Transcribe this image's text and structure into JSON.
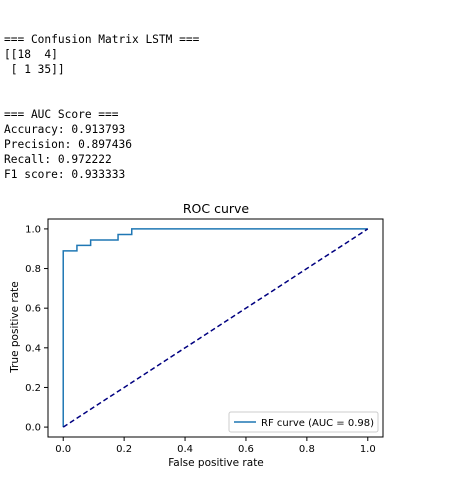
{
  "console": {
    "lines": [
      "=== Confusion Matrix LSTM ===",
      "[[18  4]",
      " [ 1 35]]",
      "",
      "",
      "=== AUC Score ===",
      "Accuracy: 0.913793",
      "Precision: 0.897436",
      "Recall: 0.972222",
      "F1 score: 0.933333"
    ]
  },
  "colors": {
    "roc_line": "#1f77b4",
    "diagonal": "#000080",
    "axes": "#000000"
  },
  "chart_data": {
    "type": "line",
    "title": "ROC curve",
    "xlabel": "False positive rate",
    "ylabel": "True positive rate",
    "xlim": [
      -0.05,
      1.05
    ],
    "ylim": [
      -0.05,
      1.05
    ],
    "x_ticks": [
      "0.0",
      "0.2",
      "0.4",
      "0.6",
      "0.8",
      "1.0"
    ],
    "y_ticks": [
      "0.0",
      "0.2",
      "0.4",
      "0.6",
      "0.8",
      "1.0"
    ],
    "grid": false,
    "legend_position": "lower-right",
    "series": [
      {
        "name": "RF curve (AUC = 0.98)",
        "style": "solid",
        "x": [
          0.0,
          0.0,
          0.0,
          0.045,
          0.045,
          0.09,
          0.09,
          0.18,
          0.18,
          0.225,
          0.225,
          1.0,
          1.0
        ],
        "y": [
          0.0,
          0.889,
          0.889,
          0.889,
          0.917,
          0.917,
          0.944,
          0.944,
          0.972,
          0.972,
          1.0,
          1.0,
          1.0
        ]
      },
      {
        "name": "",
        "style": "dashed",
        "x": [
          0.0,
          1.0
        ],
        "y": [
          0.0,
          1.0
        ]
      }
    ]
  }
}
